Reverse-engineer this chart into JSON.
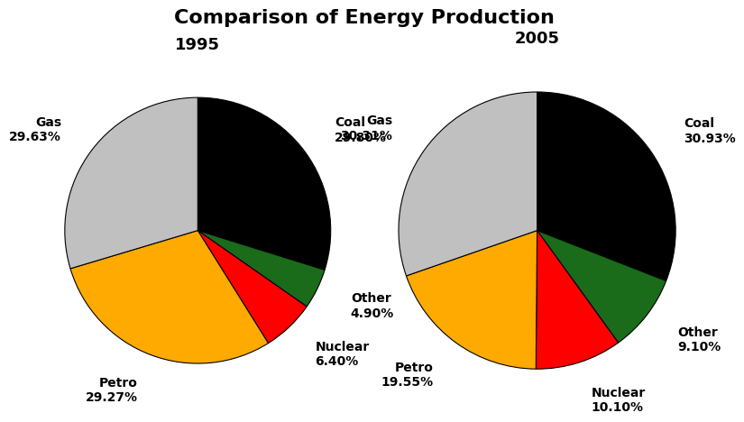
{
  "title": "Comparison of Energy Production",
  "title_fontsize": 16,
  "subtitle_fontsize": 13,
  "year1": "1995",
  "year2": "2005",
  "categories": [
    "Coal",
    "Other",
    "Nuclear",
    "Petro",
    "Gas"
  ],
  "values1": [
    29.8,
    4.9,
    6.4,
    29.27,
    29.63
  ],
  "values2": [
    30.93,
    9.1,
    10.1,
    19.55,
    30.31
  ],
  "pct1": [
    "29.80%",
    "4.90%",
    "6.40%",
    "29.27%",
    "29.63%"
  ],
  "pct2": [
    "30.93%",
    "9.10%",
    "10.10%",
    "19.55%",
    "30.31%"
  ],
  "colors": [
    "#000000",
    "#1a6b1a",
    "#ff0000",
    "#ffaa00",
    "#c0c0c0"
  ],
  "background_color": "#ffffff",
  "label_fontsize": 10,
  "title_color": "#000000",
  "year_color": "#000000",
  "startangle": 90
}
